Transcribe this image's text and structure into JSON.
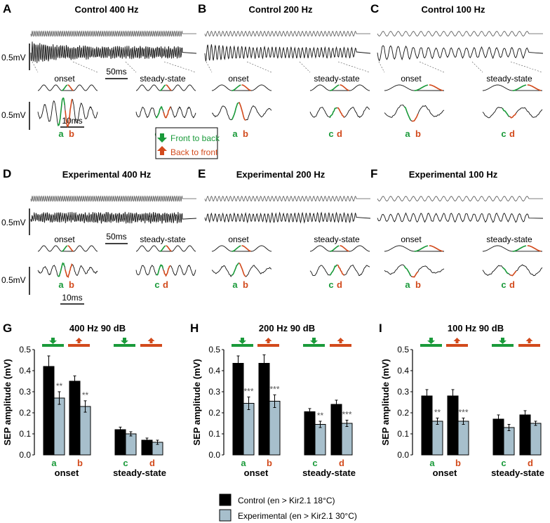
{
  "colors": {
    "green": "#1a9a3a",
    "orange": "#d24a1c",
    "control": "#000000",
    "experimental": "#a7bfcc"
  },
  "trace_panels": [
    {
      "label": "A",
      "title": "Control 400 Hz",
      "cycles": 80,
      "onset": "onset",
      "steady": "steady-state",
      "letters": [
        "a",
        "b",
        "c",
        "d"
      ],
      "scale_v": "0.5mV",
      "scale_v2": "0.5mV",
      "scale_t": "50ms",
      "scale_t2": "10ms"
    },
    {
      "label": "B",
      "title": "Control 200 Hz",
      "cycles": 40,
      "onset": "onset",
      "steady": "steady-state",
      "letters": [
        "a",
        "b",
        "c",
        "d"
      ]
    },
    {
      "label": "C",
      "title": "Control 100 Hz",
      "cycles": 20,
      "onset": "onset",
      "steady": "steady-state",
      "letters": [
        "a",
        "b",
        "c",
        "d"
      ]
    },
    {
      "label": "D",
      "title": "Experimental 400 Hz",
      "cycles": 80,
      "onset": "onset",
      "steady": "steady-state",
      "letters": [
        "a",
        "b",
        "c",
        "d"
      ],
      "scale_v": "0.5mV",
      "scale_v2": "0.5mV",
      "scale_t": "50ms",
      "scale_t2": "10ms"
    },
    {
      "label": "E",
      "title": "Experimental 200 Hz",
      "cycles": 40,
      "onset": "onset",
      "steady": "steady-state",
      "letters": [
        "a",
        "b",
        "c",
        "d"
      ]
    },
    {
      "label": "F",
      "title": "Experimental 100 Hz",
      "cycles": 20,
      "onset": "onset",
      "steady": "steady-state",
      "letters": [
        "a",
        "b",
        "c",
        "d"
      ]
    }
  ],
  "direction_legend": {
    "front_to_back": "Front to back",
    "back_to_front": "Back to front"
  },
  "chart_data": [
    {
      "type": "bar",
      "label": "G",
      "title": "400 Hz 90 dB",
      "ylabel": "SEP amplitude (mV)",
      "ylim": [
        0,
        0.5
      ],
      "yticks": [
        "0.0",
        "0.1",
        "0.2",
        "0.3",
        "0.4",
        "0.5"
      ],
      "categories": [
        "a",
        "b",
        "c",
        "d"
      ],
      "groups": [
        "onset",
        "steady-state"
      ],
      "series": [
        {
          "name": "Control (en > Kir2.1 18°C)",
          "values": [
            0.42,
            0.35,
            0.12,
            0.07
          ],
          "errors": [
            0.05,
            0.025,
            0.012,
            0.01
          ]
        },
        {
          "name": "Experimental (en > Kir2.1 30°C)",
          "values": [
            0.27,
            0.23,
            0.1,
            0.06
          ],
          "errors": [
            0.03,
            0.027,
            0.01,
            0.01
          ]
        }
      ],
      "significance": [
        "**",
        "**",
        "",
        ""
      ]
    },
    {
      "type": "bar",
      "label": "H",
      "title": "200 Hz 90 dB",
      "ylabel": "SEP amplitude (mV)",
      "ylim": [
        0,
        0.5
      ],
      "yticks": [
        "0.0",
        "0.1",
        "0.2",
        "0.3",
        "0.4",
        "0.5"
      ],
      "categories": [
        "a",
        "b",
        "c",
        "d"
      ],
      "groups": [
        "onset",
        "steady-state"
      ],
      "series": [
        {
          "name": "Control (en > Kir2.1 18°C)",
          "values": [
            0.435,
            0.435,
            0.205,
            0.24
          ],
          "errors": [
            0.035,
            0.04,
            0.015,
            0.02
          ]
        },
        {
          "name": "Experimental (en > Kir2.1 30°C)",
          "values": [
            0.245,
            0.255,
            0.145,
            0.15
          ],
          "errors": [
            0.03,
            0.03,
            0.015,
            0.015
          ]
        }
      ],
      "significance": [
        "***",
        "***",
        "**",
        "***"
      ]
    },
    {
      "type": "bar",
      "label": "I",
      "title": "100 Hz 90 dB",
      "ylabel": "SEP amplitude (mV)",
      "ylim": [
        0,
        0.5
      ],
      "yticks": [
        "0.0",
        "0.1",
        "0.2",
        "0.3",
        "0.4",
        "0.5"
      ],
      "categories": [
        "a",
        "b",
        "c",
        "d"
      ],
      "groups": [
        "onset",
        "steady-state"
      ],
      "series": [
        {
          "name": "Control (en > Kir2.1 18°C)",
          "values": [
            0.28,
            0.28,
            0.17,
            0.19
          ],
          "errors": [
            0.03,
            0.03,
            0.02,
            0.02
          ]
        },
        {
          "name": "Experimental (en > Kir2.1 30°C)",
          "values": [
            0.16,
            0.16,
            0.13,
            0.15
          ],
          "errors": [
            0.015,
            0.015,
            0.015,
            0.01
          ]
        }
      ],
      "significance": [
        "**",
        "***",
        "",
        ""
      ]
    }
  ],
  "legend": {
    "control": "Control (en > Kir2.1 18°C)",
    "experimental": "Experimental (en > Kir2.1 30°C)"
  }
}
